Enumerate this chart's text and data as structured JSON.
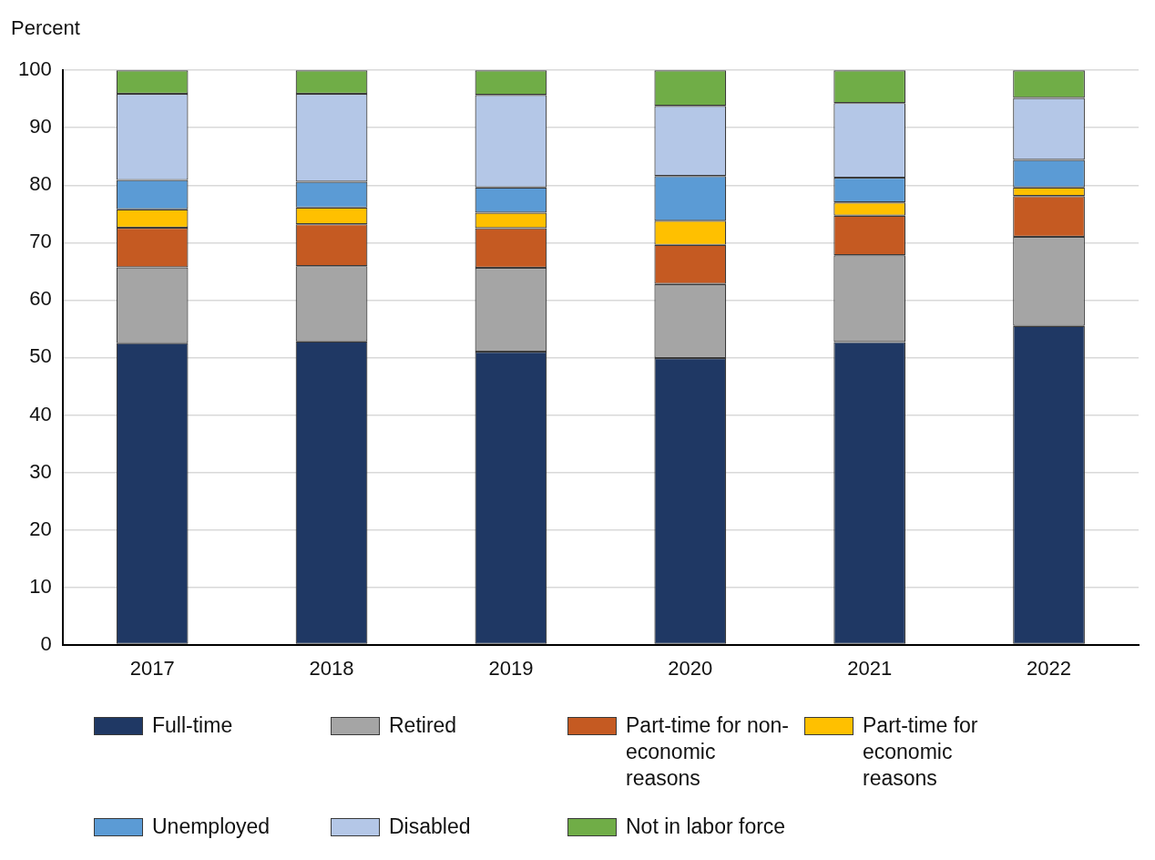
{
  "chart_data": {
    "type": "bar",
    "stacked": true,
    "ylabel": "Percent",
    "categories": [
      "2017",
      "2018",
      "2019",
      "2020",
      "2021",
      "2022"
    ],
    "series": [
      {
        "name": "Full-time",
        "color": "#1f3864",
        "values": [
          52.5,
          52.8,
          51.0,
          49.9,
          52.7,
          55.5
        ]
      },
      {
        "name": "Retired",
        "color": "#a5a5a5",
        "values": [
          13.2,
          13.1,
          14.6,
          12.9,
          15.1,
          15.5
        ]
      },
      {
        "name": "Part-time for non-economic reasons",
        "color": "#c55a22",
        "values": [
          6.9,
          7.3,
          6.9,
          6.8,
          6.9,
          7.1
        ]
      },
      {
        "name": "Part-time for economic reasons",
        "color": "#ffc000",
        "values": [
          3.2,
          2.9,
          2.7,
          4.2,
          2.3,
          1.5
        ]
      },
      {
        "name": "Unemployed",
        "color": "#5b9bd5",
        "values": [
          5.1,
          4.5,
          4.4,
          7.8,
          4.3,
          4.8
        ]
      },
      {
        "name": "Disabled",
        "color": "#b4c7e7",
        "values": [
          15.0,
          15.3,
          16.1,
          12.2,
          13.0,
          10.8
        ]
      },
      {
        "name": "Not in labor force",
        "color": "#70ad47",
        "values": [
          4.1,
          4.1,
          4.3,
          6.2,
          5.7,
          4.8
        ]
      }
    ],
    "ylim": [
      0,
      100
    ],
    "yticks": [
      0,
      10,
      20,
      30,
      40,
      50,
      60,
      70,
      80,
      90,
      100
    ],
    "grid": "y",
    "legend": "bottom"
  }
}
